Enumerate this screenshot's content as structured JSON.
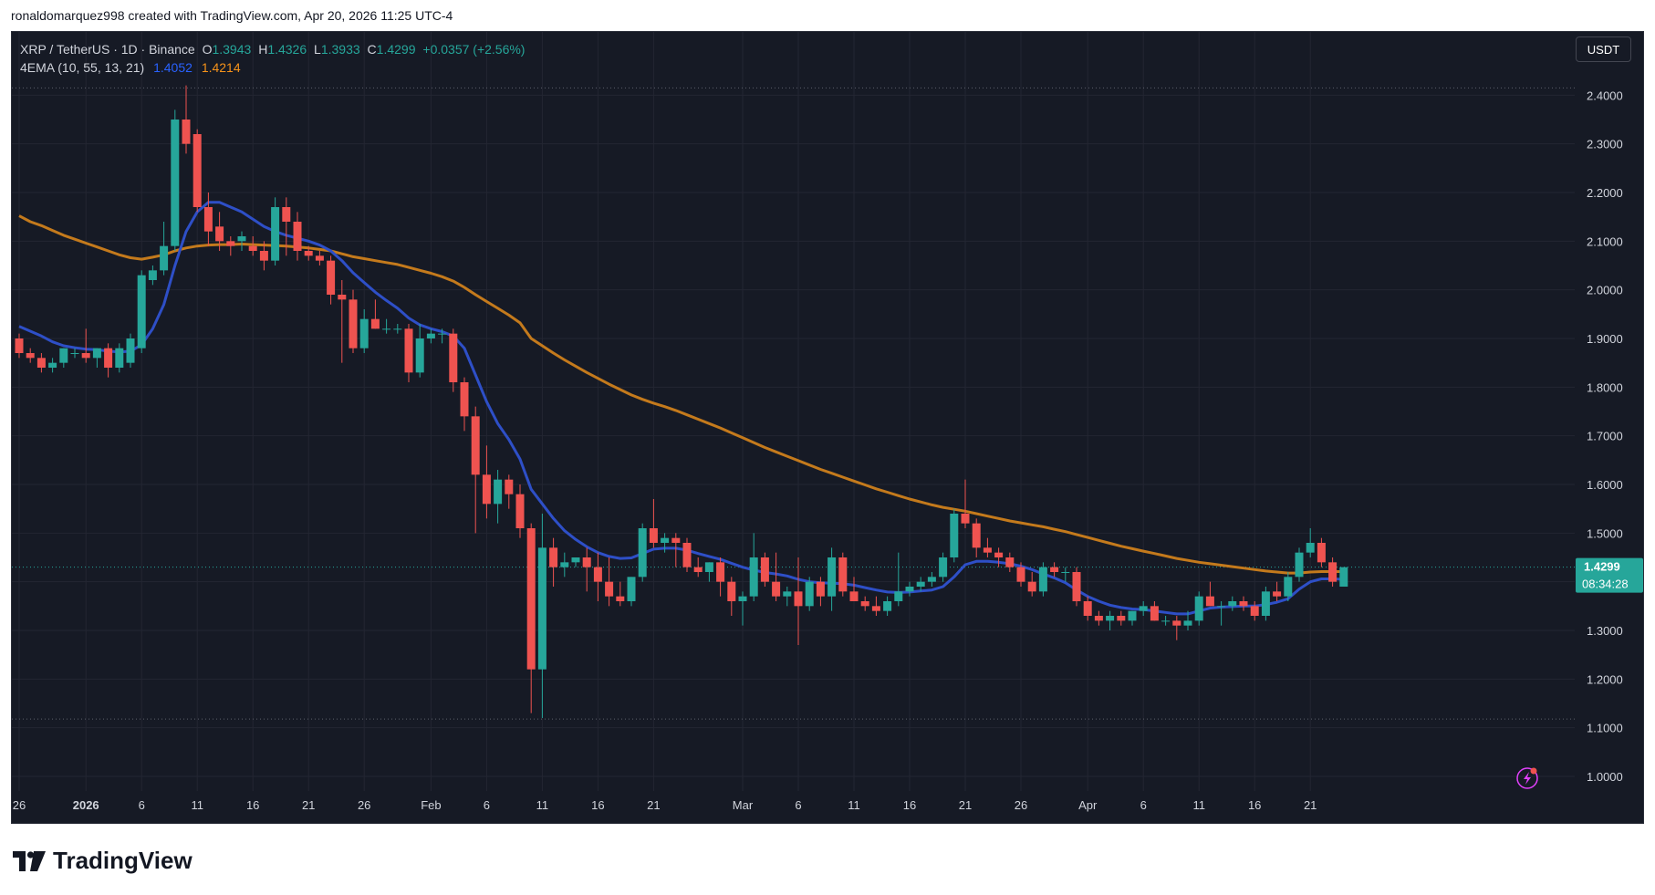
{
  "attribution": "ronaldomarquez998 created with TradingView.com, Apr 20, 2026 11:25 UTC-4",
  "legend": {
    "symbol": "XRP / TetherUS · 1D · Binance",
    "o_label": "O",
    "o_value": "1.3943",
    "h_label": "H",
    "h_value": "1.4326",
    "l_label": "L",
    "l_value": "1.3933",
    "c_label": "C",
    "c_value": "1.4299",
    "change": "+0.0357 (+2.56%)",
    "ema_label": "4EMA (10, 55, 13, 21)",
    "ema_short_value": "1.4052",
    "ema_long_value": "1.4214"
  },
  "currency_button": "USDT",
  "price_label": {
    "price": "1.4299",
    "countdown": "08:34:28"
  },
  "brand": "TradingView",
  "colors": {
    "up": "#26a69a",
    "down": "#ef5350",
    "ema_short": "#2962ff",
    "ema_long": "#f7931a",
    "background": "#161a25",
    "grid": "#232632"
  },
  "chart_data": {
    "type": "candlestick",
    "y_ticks": [
      "1.0000",
      "1.1000",
      "1.2000",
      "1.3000",
      "1.4000",
      "1.5000",
      "1.6000",
      "1.7000",
      "1.8000",
      "1.9000",
      "2.0000",
      "2.1000",
      "2.2000",
      "2.3000",
      "2.4000"
    ],
    "ylim": [
      0.97,
      2.53
    ],
    "x_ticks": [
      {
        "label": "26",
        "index": 0
      },
      {
        "label": "2026",
        "index": 6
      },
      {
        "label": "6",
        "index": 11
      },
      {
        "label": "11",
        "index": 16
      },
      {
        "label": "16",
        "index": 21
      },
      {
        "label": "21",
        "index": 26
      },
      {
        "label": "26",
        "index": 31
      },
      {
        "label": "Feb",
        "index": 37
      },
      {
        "label": "6",
        "index": 42
      },
      {
        "label": "11",
        "index": 47
      },
      {
        "label": "16",
        "index": 52
      },
      {
        "label": "21",
        "index": 57
      },
      {
        "label": "Mar",
        "index": 65
      },
      {
        "label": "6",
        "index": 70
      },
      {
        "label": "11",
        "index": 75
      },
      {
        "label": "16",
        "index": 80
      },
      {
        "label": "21",
        "index": 85
      },
      {
        "label": "26",
        "index": 90
      },
      {
        "label": "Apr",
        "index": 96
      },
      {
        "label": "6",
        "index": 101
      },
      {
        "label": "11",
        "index": 106
      },
      {
        "label": "16",
        "index": 111
      },
      {
        "label": "21",
        "index": 116
      }
    ],
    "reference_lines": [
      2.415,
      1.118
    ],
    "candles": [
      [
        1.9,
        1.91,
        1.86,
        1.87
      ],
      [
        1.87,
        1.88,
        1.85,
        1.86
      ],
      [
        1.86,
        1.87,
        1.83,
        1.84
      ],
      [
        1.84,
        1.86,
        1.83,
        1.85
      ],
      [
        1.85,
        1.88,
        1.84,
        1.88
      ],
      [
        1.87,
        1.88,
        1.86,
        1.87
      ],
      [
        1.87,
        1.92,
        1.85,
        1.86
      ],
      [
        1.86,
        1.88,
        1.84,
        1.88
      ],
      [
        1.88,
        1.89,
        1.82,
        1.84
      ],
      [
        1.84,
        1.89,
        1.83,
        1.88
      ],
      [
        1.85,
        1.91,
        1.84,
        1.9
      ],
      [
        1.88,
        2.04,
        1.87,
        2.03
      ],
      [
        2.02,
        2.05,
        2.01,
        2.04
      ],
      [
        2.04,
        2.14,
        2.03,
        2.09
      ],
      [
        2.09,
        2.37,
        2.08,
        2.35
      ],
      [
        2.35,
        2.42,
        2.28,
        2.3
      ],
      [
        2.32,
        2.33,
        2.16,
        2.17
      ],
      [
        2.17,
        2.2,
        2.09,
        2.12
      ],
      [
        2.13,
        2.16,
        2.08,
        2.1
      ],
      [
        2.1,
        2.11,
        2.07,
        2.09
      ],
      [
        2.1,
        2.12,
        2.08,
        2.11
      ],
      [
        2.09,
        2.11,
        2.07,
        2.08
      ],
      [
        2.08,
        2.1,
        2.04,
        2.06
      ],
      [
        2.06,
        2.19,
        2.05,
        2.17
      ],
      [
        2.17,
        2.19,
        2.07,
        2.14
      ],
      [
        2.14,
        2.16,
        2.06,
        2.08
      ],
      [
        2.08,
        2.09,
        2.06,
        2.07
      ],
      [
        2.07,
        2.08,
        2.05,
        2.06
      ],
      [
        2.06,
        2.07,
        1.97,
        1.99
      ],
      [
        1.99,
        2.02,
        1.85,
        1.98
      ],
      [
        1.98,
        2.0,
        1.87,
        1.88
      ],
      [
        1.88,
        1.96,
        1.87,
        1.94
      ],
      [
        1.94,
        1.98,
        1.92,
        1.92
      ],
      [
        1.92,
        1.94,
        1.91,
        1.92
      ],
      [
        1.92,
        1.93,
        1.91,
        1.92
      ],
      [
        1.92,
        1.93,
        1.81,
        1.83
      ],
      [
        1.83,
        1.93,
        1.82,
        1.9
      ],
      [
        1.9,
        1.92,
        1.89,
        1.91
      ],
      [
        1.91,
        1.92,
        1.89,
        1.91
      ],
      [
        1.91,
        1.92,
        1.79,
        1.81
      ],
      [
        1.81,
        1.82,
        1.71,
        1.74
      ],
      [
        1.74,
        1.76,
        1.5,
        1.62
      ],
      [
        1.62,
        1.68,
        1.53,
        1.56
      ],
      [
        1.56,
        1.63,
        1.52,
        1.61
      ],
      [
        1.61,
        1.62,
        1.55,
        1.58
      ],
      [
        1.58,
        1.6,
        1.49,
        1.51
      ],
      [
        1.51,
        1.52,
        1.13,
        1.22
      ],
      [
        1.22,
        1.54,
        1.12,
        1.47
      ],
      [
        1.47,
        1.49,
        1.39,
        1.43
      ],
      [
        1.43,
        1.46,
        1.41,
        1.44
      ],
      [
        1.44,
        1.45,
        1.43,
        1.45
      ],
      [
        1.45,
        1.47,
        1.38,
        1.43
      ],
      [
        1.43,
        1.46,
        1.36,
        1.4
      ],
      [
        1.4,
        1.45,
        1.35,
        1.37
      ],
      [
        1.37,
        1.4,
        1.35,
        1.36
      ],
      [
        1.36,
        1.41,
        1.35,
        1.41
      ],
      [
        1.41,
        1.52,
        1.4,
        1.51
      ],
      [
        1.51,
        1.57,
        1.47,
        1.48
      ],
      [
        1.48,
        1.5,
        1.46,
        1.49
      ],
      [
        1.49,
        1.5,
        1.43,
        1.48
      ],
      [
        1.48,
        1.49,
        1.42,
        1.43
      ],
      [
        1.43,
        1.45,
        1.41,
        1.42
      ],
      [
        1.42,
        1.44,
        1.4,
        1.44
      ],
      [
        1.44,
        1.45,
        1.37,
        1.4
      ],
      [
        1.4,
        1.41,
        1.33,
        1.36
      ],
      [
        1.36,
        1.38,
        1.31,
        1.37
      ],
      [
        1.37,
        1.5,
        1.36,
        1.45
      ],
      [
        1.45,
        1.46,
        1.39,
        1.4
      ],
      [
        1.4,
        1.46,
        1.36,
        1.37
      ],
      [
        1.37,
        1.39,
        1.35,
        1.38
      ],
      [
        1.38,
        1.45,
        1.27,
        1.35
      ],
      [
        1.35,
        1.41,
        1.34,
        1.4
      ],
      [
        1.4,
        1.41,
        1.35,
        1.37
      ],
      [
        1.37,
        1.47,
        1.34,
        1.45
      ],
      [
        1.45,
        1.46,
        1.37,
        1.38
      ],
      [
        1.38,
        1.41,
        1.36,
        1.36
      ],
      [
        1.36,
        1.37,
        1.34,
        1.35
      ],
      [
        1.35,
        1.37,
        1.33,
        1.34
      ],
      [
        1.34,
        1.37,
        1.33,
        1.36
      ],
      [
        1.36,
        1.46,
        1.35,
        1.38
      ],
      [
        1.38,
        1.4,
        1.37,
        1.39
      ],
      [
        1.39,
        1.41,
        1.38,
        1.4
      ],
      [
        1.4,
        1.42,
        1.39,
        1.41
      ],
      [
        1.41,
        1.46,
        1.4,
        1.45
      ],
      [
        1.45,
        1.55,
        1.44,
        1.54
      ],
      [
        1.54,
        1.61,
        1.51,
        1.52
      ],
      [
        1.52,
        1.53,
        1.45,
        1.47
      ],
      [
        1.47,
        1.49,
        1.45,
        1.46
      ],
      [
        1.46,
        1.47,
        1.43,
        1.45
      ],
      [
        1.45,
        1.46,
        1.42,
        1.43
      ],
      [
        1.43,
        1.44,
        1.39,
        1.4
      ],
      [
        1.4,
        1.42,
        1.37,
        1.38
      ],
      [
        1.38,
        1.44,
        1.37,
        1.43
      ],
      [
        1.43,
        1.44,
        1.41,
        1.42
      ],
      [
        1.42,
        1.43,
        1.4,
        1.42
      ],
      [
        1.42,
        1.43,
        1.35,
        1.36
      ],
      [
        1.36,
        1.37,
        1.32,
        1.33
      ],
      [
        1.33,
        1.34,
        1.31,
        1.32
      ],
      [
        1.32,
        1.34,
        1.3,
        1.33
      ],
      [
        1.33,
        1.34,
        1.31,
        1.32
      ],
      [
        1.32,
        1.34,
        1.31,
        1.34
      ],
      [
        1.34,
        1.36,
        1.33,
        1.35
      ],
      [
        1.35,
        1.36,
        1.32,
        1.32
      ],
      [
        1.32,
        1.33,
        1.31,
        1.32
      ],
      [
        1.32,
        1.33,
        1.28,
        1.31
      ],
      [
        1.31,
        1.34,
        1.3,
        1.32
      ],
      [
        1.32,
        1.38,
        1.31,
        1.37
      ],
      [
        1.37,
        1.4,
        1.35,
        1.35
      ],
      [
        1.35,
        1.36,
        1.31,
        1.35
      ],
      [
        1.35,
        1.37,
        1.34,
        1.36
      ],
      [
        1.36,
        1.37,
        1.34,
        1.35
      ],
      [
        1.35,
        1.36,
        1.32,
        1.33
      ],
      [
        1.33,
        1.39,
        1.32,
        1.38
      ],
      [
        1.38,
        1.4,
        1.36,
        1.37
      ],
      [
        1.37,
        1.42,
        1.36,
        1.41
      ],
      [
        1.41,
        1.47,
        1.4,
        1.46
      ],
      [
        1.46,
        1.51,
        1.45,
        1.48
      ],
      [
        1.48,
        1.49,
        1.43,
        1.44
      ],
      [
        1.44,
        1.45,
        1.39,
        1.4
      ],
      [
        1.39,
        1.43,
        1.39,
        1.43
      ]
    ],
    "ema_short": [
      1.925,
      1.915,
      1.905,
      1.893,
      1.885,
      1.881,
      1.878,
      1.877,
      1.874,
      1.872,
      1.874,
      1.887,
      1.92,
      1.97,
      2.05,
      2.12,
      2.16,
      2.18,
      2.18,
      2.17,
      2.16,
      2.145,
      2.13,
      2.12,
      2.112,
      2.106,
      2.1,
      2.092,
      2.08,
      2.06,
      2.035,
      2.015,
      1.995,
      1.978,
      1.962,
      1.942,
      1.928,
      1.92,
      1.914,
      1.905,
      1.88,
      1.825,
      1.77,
      1.725,
      1.692,
      1.652,
      1.59,
      1.56,
      1.53,
      1.505,
      1.487,
      1.472,
      1.46,
      1.452,
      1.448,
      1.449,
      1.458,
      1.467,
      1.469,
      1.469,
      1.465,
      1.458,
      1.452,
      1.446,
      1.438,
      1.43,
      1.424,
      1.419,
      1.416,
      1.412,
      1.405,
      1.4,
      1.398,
      1.397,
      1.396,
      1.393,
      1.388,
      1.383,
      1.379,
      1.378,
      1.379,
      1.381,
      1.383,
      1.39,
      1.41,
      1.435,
      1.442,
      1.442,
      1.44,
      1.437,
      1.432,
      1.425,
      1.416,
      1.408,
      1.398,
      1.383,
      1.37,
      1.36,
      1.352,
      1.347,
      1.344,
      1.343,
      1.34,
      1.337,
      1.334,
      1.334,
      1.34,
      1.346,
      1.348,
      1.349,
      1.35,
      1.35,
      1.353,
      1.358,
      1.365,
      1.385,
      1.4,
      1.406,
      1.406,
      1.405
    ],
    "ema_long": [
      2.152,
      2.14,
      2.132,
      2.122,
      2.112,
      2.104,
      2.096,
      2.088,
      2.08,
      2.072,
      2.066,
      2.063,
      2.067,
      2.072,
      2.08,
      2.086,
      2.09,
      2.092,
      2.093,
      2.093,
      2.094,
      2.093,
      2.092,
      2.091,
      2.09,
      2.088,
      2.086,
      2.083,
      2.08,
      2.074,
      2.068,
      2.064,
      2.06,
      2.056,
      2.052,
      2.046,
      2.04,
      2.034,
      2.027,
      2.018,
      2.005,
      1.99,
      1.976,
      1.962,
      1.948,
      1.932,
      1.9,
      1.885,
      1.87,
      1.856,
      1.843,
      1.83,
      1.818,
      1.806,
      1.795,
      1.784,
      1.775,
      1.767,
      1.76,
      1.752,
      1.743,
      1.734,
      1.725,
      1.716,
      1.706,
      1.696,
      1.686,
      1.676,
      1.667,
      1.658,
      1.649,
      1.64,
      1.631,
      1.623,
      1.615,
      1.607,
      1.599,
      1.591,
      1.584,
      1.577,
      1.57,
      1.564,
      1.558,
      1.553,
      1.549,
      1.545,
      1.54,
      1.535,
      1.53,
      1.525,
      1.521,
      1.517,
      1.513,
      1.508,
      1.503,
      1.497,
      1.491,
      1.485,
      1.479,
      1.473,
      1.468,
      1.463,
      1.458,
      1.453,
      1.448,
      1.444,
      1.44,
      1.437,
      1.434,
      1.431,
      1.428,
      1.425,
      1.422,
      1.42,
      1.418,
      1.418,
      1.42,
      1.421,
      1.421,
      1.421
    ]
  }
}
